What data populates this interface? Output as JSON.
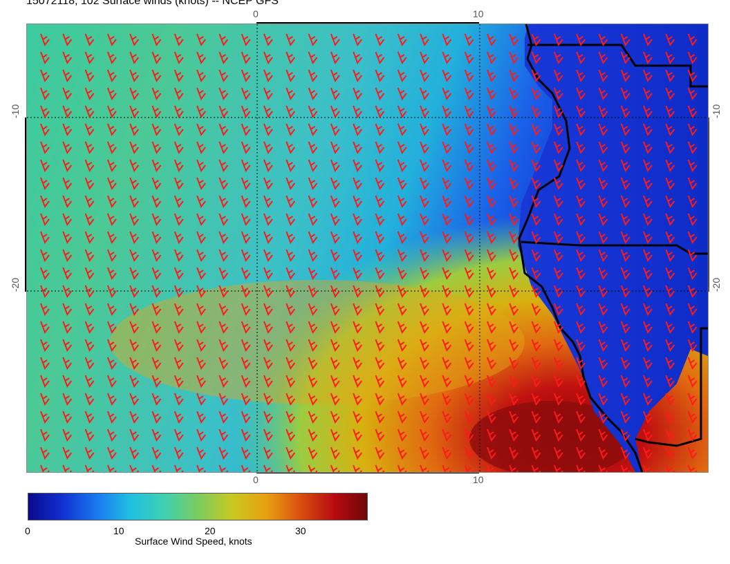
{
  "title": "15072118, 102 Surface winds (knots) -- NCEP GFS",
  "axes": {
    "lon_ticks_top": [
      "0",
      "10"
    ],
    "lon_ticks_bottom": [
      "0",
      "10"
    ],
    "lat_ticks_left": [
      "-10",
      "-20"
    ],
    "lat_ticks_right": [
      "-10",
      "-20"
    ]
  },
  "colorbar": {
    "title": "Surface Wind Speed, knots",
    "tick_labels": [
      "0",
      "10",
      "20",
      "30"
    ],
    "range": [
      0,
      37
    ],
    "colors": [
      "#0a0a8c",
      "#1030d0",
      "#1a78f0",
      "#20c0e0",
      "#40d0b0",
      "#7ccc60",
      "#c8c820",
      "#e8a010",
      "#d85010",
      "#b80a10",
      "#6a0808"
    ]
  },
  "styles": {
    "barb_color": "#ff1a1a",
    "coast_color": "#000000"
  }
}
